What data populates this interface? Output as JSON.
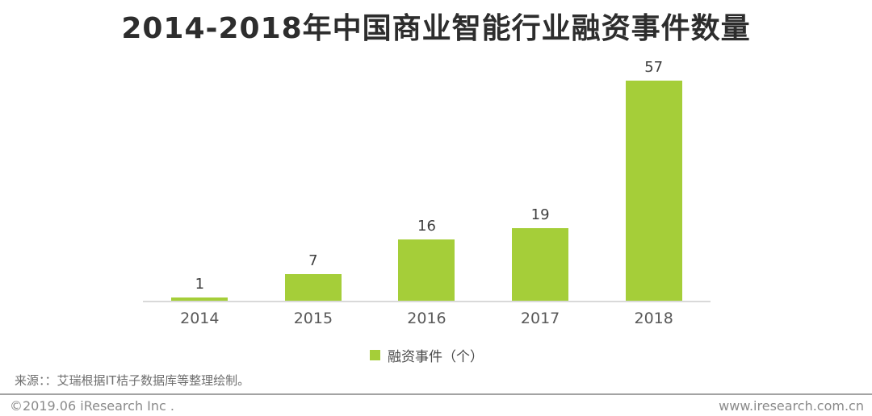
{
  "title": "2014-2018年中国商业智能行业融资事件数量",
  "chart_data": {
    "type": "bar",
    "categories": [
      "2014",
      "2015",
      "2016",
      "2017",
      "2018"
    ],
    "values": [
      1,
      7,
      16,
      19,
      57
    ],
    "title": "2014-2018年中国商业智能行业融资事件数量",
    "xlabel": "",
    "ylabel": "",
    "ylim": [
      0,
      60
    ],
    "grid": false,
    "data_labels": true,
    "legend": [
      "融资事件（个）"
    ],
    "legend_position": "bottom"
  },
  "legend": {
    "label": "融资事件（个）"
  },
  "colors": {
    "bar": "#a5ce39",
    "title_text": "#2d2d2d",
    "axis_line": "#d9d9d9",
    "value_label": "#3f3f3f",
    "category_label": "#595959",
    "footer_text": "#8a8a8a"
  },
  "source_note": "来源：：艾瑞根据IT桔子数据库等整理绘制。",
  "footer": {
    "copyright": "©2019.06 iResearch Inc .",
    "website": "www.iresearch.com.cn"
  }
}
